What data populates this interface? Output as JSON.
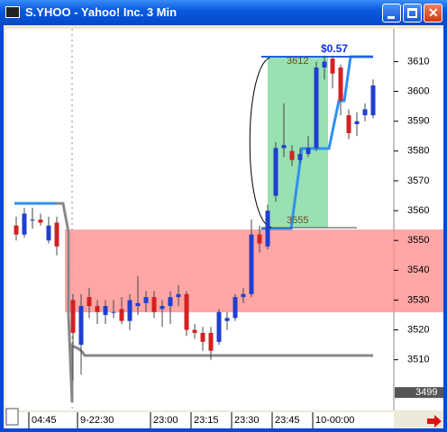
{
  "window": {
    "title": "S.YHOO - Yahoo! Inc. 3 Min"
  },
  "chart_data": {
    "type": "candlestick",
    "open": [
      3555,
      3552,
      3557,
      3557,
      3550,
      3556,
      null,
      3530,
      3515,
      3531,
      3528,
      3525,
      3526,
      3527,
      3523,
      3528,
      3529,
      3531,
      3527,
      3528,
      3531,
      3532,
      3520,
      3519,
      3519,
      3516,
      3523,
      3524,
      3531,
      3532,
      3552,
      3548,
      3565,
      3581,
      3580,
      3577,
      3579,
      3581,
      3608,
      3611,
      3608,
      3592,
      3589,
      3592,
      3592
    ],
    "high": [
      3558,
      3561,
      3561,
      3559,
      3558,
      3558,
      null,
      3532,
      3532,
      3534,
      3530,
      3530,
      3530,
      3531,
      3532,
      3538,
      3533,
      3533,
      3530,
      3533,
      3535,
      3533,
      3522,
      3521,
      3521,
      3527,
      3526,
      3532,
      3534,
      3557,
      3555,
      3562,
      3583,
      3596,
      3582,
      3581,
      3585,
      3610,
      3612,
      3612,
      3609,
      3594,
      3593,
      3596,
      3604
    ],
    "low": [
      3550,
      3551,
      3554,
      3555,
      3549,
      3545,
      null,
      3503,
      3505,
      3524,
      3522,
      3522,
      3524,
      3522,
      3520,
      3525,
      3526,
      3524,
      3521,
      3522,
      3528,
      3518,
      3517,
      3513,
      3510,
      3515,
      3520,
      3523,
      3529,
      3531,
      3546,
      3547,
      3563,
      3578,
      3575,
      3576,
      3578,
      3580,
      3604,
      3601,
      3592,
      3584,
      3585,
      3590,
      3591
    ],
    "close": [
      3552,
      3559,
      3557,
      3556,
      3555,
      3548,
      null,
      3519,
      3528,
      3528,
      3526,
      3528,
      3526,
      3523,
      3530,
      3529,
      3531,
      3526,
      3528,
      3531,
      3532,
      3520,
      3519,
      3516,
      3513,
      3526,
      3524,
      3531,
      3532,
      3552,
      3549,
      3560,
      3581,
      3582,
      3577,
      3579,
      3581,
      3608,
      3610,
      3606,
      3597,
      3586,
      3590,
      3594,
      3602
    ],
    "up_color": "#1f3fd0",
    "down_color": "#d42020",
    "ylim": [
      3493,
      3621
    ],
    "yticks": [
      3510,
      3520,
      3530,
      3540,
      3550,
      3560,
      3570,
      3580,
      3590,
      3600,
      3610
    ],
    "xticks": [
      {
        "value": 2,
        "label": "04:45"
      },
      {
        "value": 8,
        "label": "9-22:30"
      },
      {
        "value": 17,
        "label": "23:00"
      },
      {
        "value": 22,
        "label": "23:15"
      },
      {
        "value": 27,
        "label": "23:30"
      },
      {
        "value": 32,
        "label": "23:45"
      },
      {
        "value": 37,
        "label": "10-00:00"
      }
    ],
    "last_price": 3499,
    "annotations": {
      "profit": "$0.57",
      "high_label": "3612",
      "low_label": "3555"
    }
  }
}
